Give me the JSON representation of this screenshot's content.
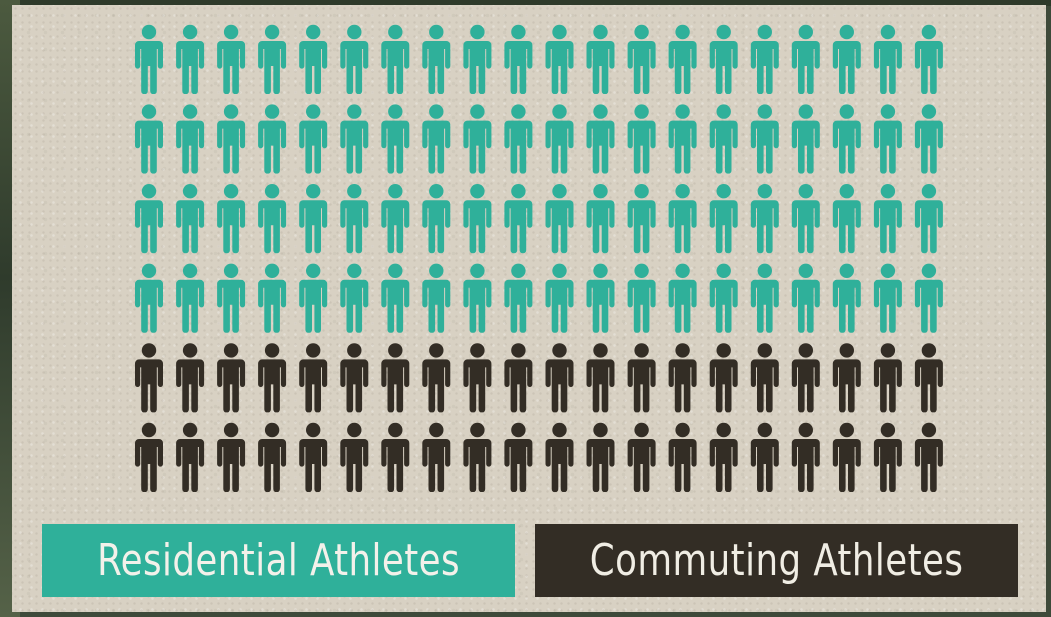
{
  "chart_data": {
    "type": "pictogram",
    "units_per_icon": 1,
    "columns": 20,
    "series": [
      {
        "name": "Residential Athletes",
        "count": 80,
        "color": "#2fb09a"
      },
      {
        "name": "Commuting Athletes",
        "count": 40,
        "color": "#332d25"
      }
    ],
    "title": "",
    "legend_position": "bottom"
  },
  "legend": {
    "residential_label": "Residential Athletes",
    "commuting_label": "Commuting Athletes"
  },
  "icon": "person-icon"
}
